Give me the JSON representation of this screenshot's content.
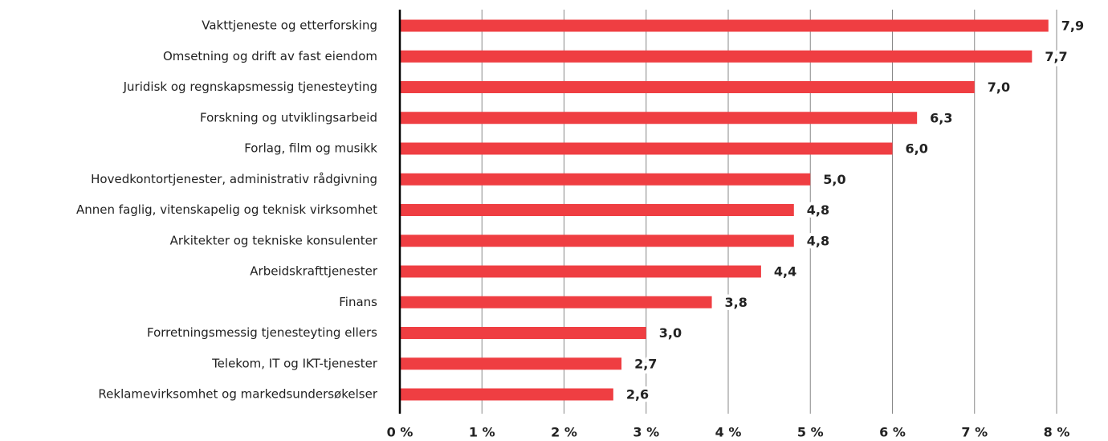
{
  "chart_data": {
    "type": "bar",
    "orientation": "horizontal",
    "categories": [
      "Vakttjeneste og etterforsking",
      "Omsetning og drift av fast eiendom",
      "Juridisk og regnskapsmessig tjenesteyting",
      "Forskning og utviklingsarbeid",
      "Forlag, film og musikk",
      "Hovedkontortjenester, administrativ rådgivning",
      "Annen faglig, vitenskapelig og teknisk virksomhet",
      "Arkitekter og tekniske konsulenter",
      "Arbeidskrafttjenester",
      "Finans",
      "Forretningsmessig tjenesteyting ellers",
      "Telekom, IT og IKT-tjenester",
      "Reklamevirksomhet og markedsundersøkelser"
    ],
    "values": [
      7.9,
      7.7,
      7.0,
      6.3,
      6.0,
      5.0,
      4.8,
      4.8,
      4.4,
      3.8,
      3.0,
      2.7,
      2.6
    ],
    "value_labels": [
      "7,9",
      "7,7",
      "7,0",
      "6,3",
      "6,0",
      "5,0",
      "4,8",
      "4,8",
      "4,4",
      "3,8",
      "3,0",
      "2,7",
      "2,6"
    ],
    "color": "#ef3e42",
    "xlim": [
      0,
      8
    ],
    "xticks": [
      {
        "value": 0,
        "label": "0 %"
      },
      {
        "value": 1,
        "label": "1 %"
      },
      {
        "value": 2,
        "label": "2 %"
      },
      {
        "value": 3,
        "label": "3 %"
      },
      {
        "value": 4,
        "label": "4 %"
      },
      {
        "value": 5,
        "label": "5 %"
      },
      {
        "value": 6,
        "label": "6 %"
      },
      {
        "value": 7,
        "label": "7 %"
      },
      {
        "value": 8,
        "label": "8 %"
      }
    ],
    "grid": true
  }
}
